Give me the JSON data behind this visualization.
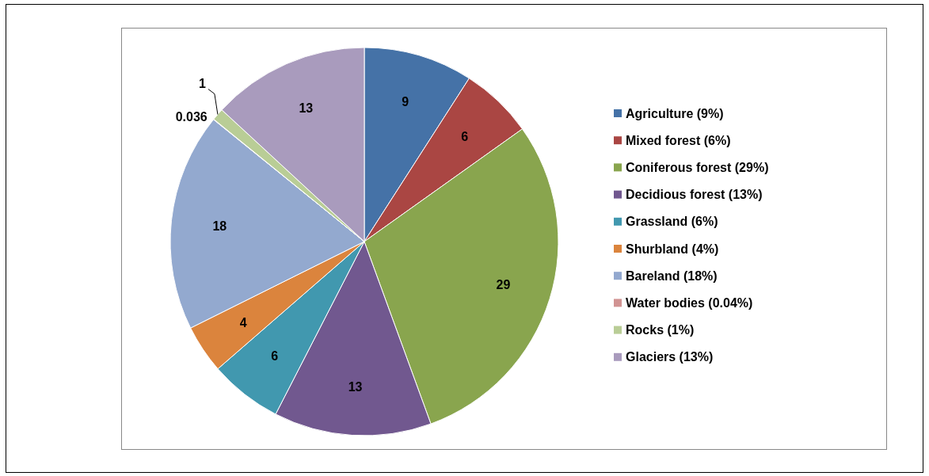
{
  "chart_data": {
    "type": "pie",
    "categories": [
      "Agriculture (9%)",
      "Mixed forest (6%)",
      "Coniferous forest (29%)",
      "Decidious forest (13%)",
      "Grassland (6%)",
      "Shurbland (4%)",
      "Bareland (18%)",
      "Water bodies (0.04%)",
      "Rocks (1%)",
      "Glaciers (13%)"
    ],
    "values": [
      9,
      6,
      29,
      13,
      6,
      4,
      18,
      0.036,
      1,
      13
    ],
    "colors": [
      "#4572a7",
      "#aa4643",
      "#89a54e",
      "#71588f",
      "#4198af",
      "#db843d",
      "#93a9cf",
      "#d19392",
      "#b9cd96",
      "#a99bbd"
    ],
    "data_labels": true,
    "legend": "right"
  }
}
